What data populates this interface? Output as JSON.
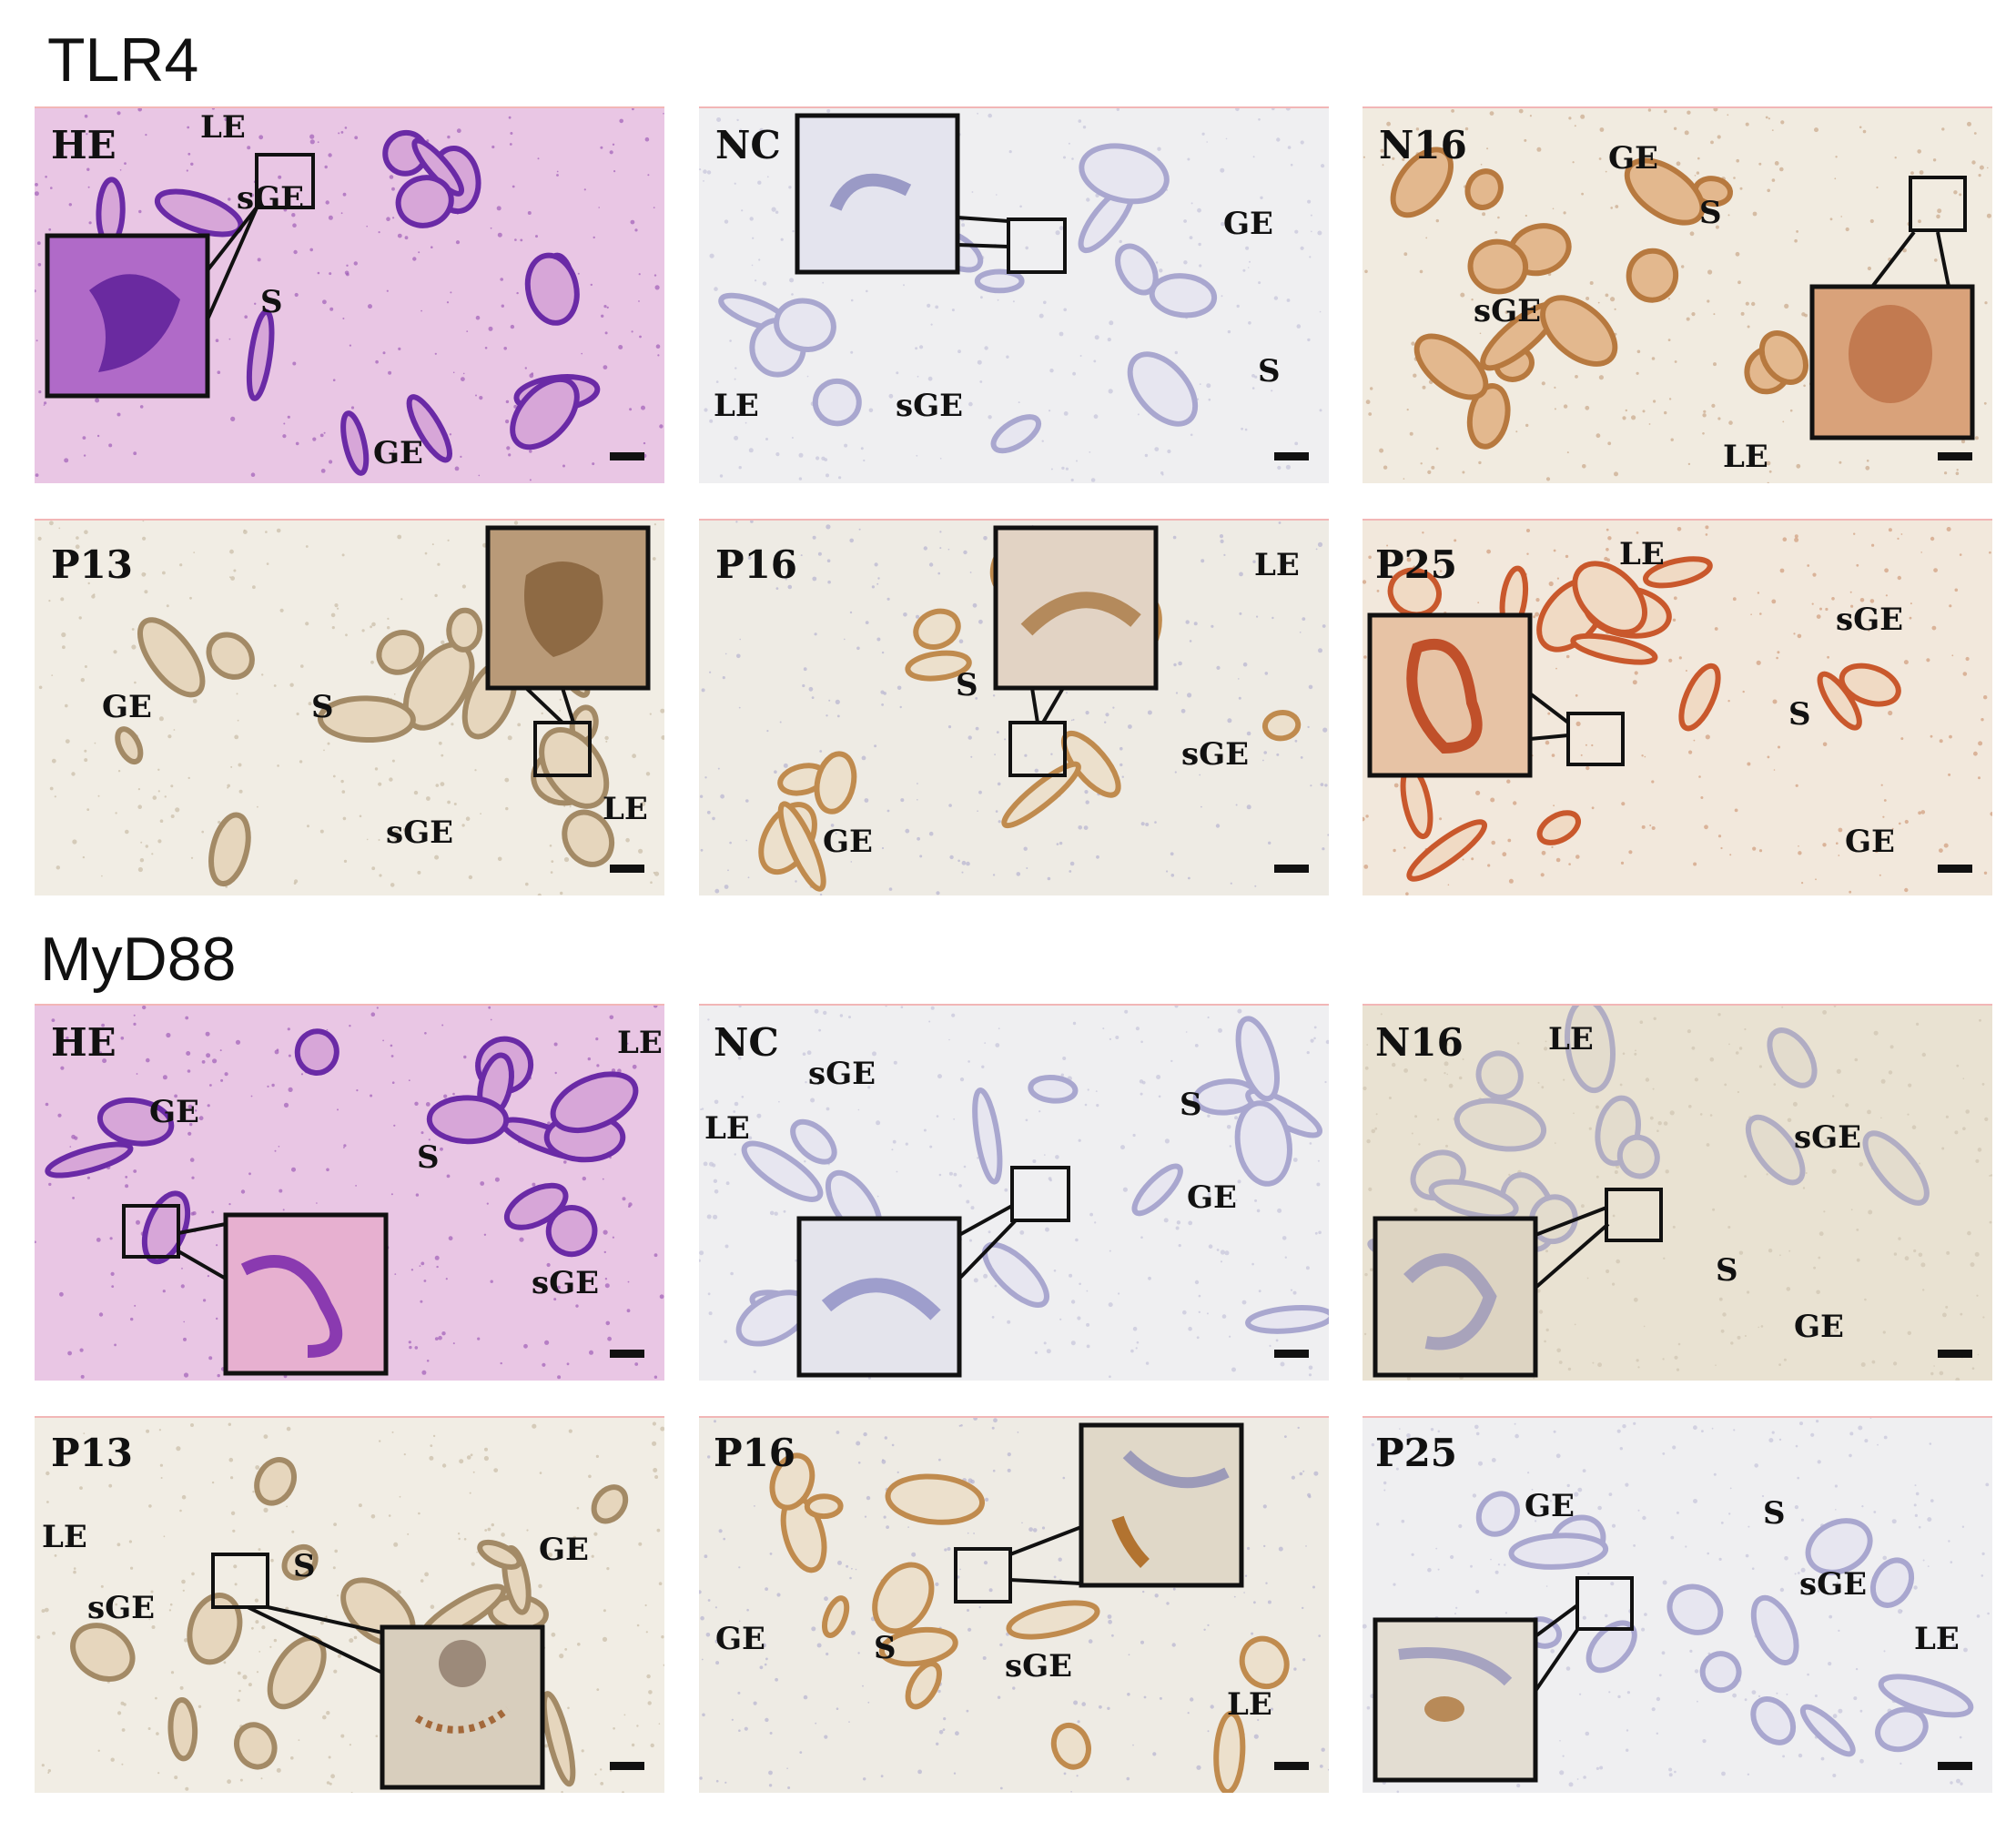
{
  "sections": [
    {
      "title": "TLR4"
    },
    {
      "title": "MyD88"
    }
  ],
  "panels": [
    {
      "name": "HE",
      "style": "he",
      "labels": [
        "LE",
        "sGE",
        "S",
        "GE"
      ]
    },
    {
      "name": "NC",
      "style": "nc",
      "labels": [
        "GE",
        "S",
        "LE",
        "sGE"
      ]
    },
    {
      "name": "N16",
      "style": "brown",
      "labels": [
        "GE",
        "S",
        "sGE",
        "LE"
      ]
    },
    {
      "name": "P13",
      "style": "lightbrown",
      "labels": [
        "GE",
        "S",
        "LE",
        "sGE"
      ]
    },
    {
      "name": "P16",
      "style": "mixed",
      "labels": [
        "LE",
        "S",
        "sGE",
        "GE"
      ]
    },
    {
      "name": "P25",
      "style": "orange",
      "labels": [
        "LE",
        "sGE",
        "S",
        "GE"
      ]
    },
    {
      "name": "HE",
      "style": "he",
      "labels": [
        "LE",
        "GE",
        "S",
        "sGE"
      ]
    },
    {
      "name": "NC",
      "style": "nc",
      "labels": [
        "sGE",
        "LE",
        "S",
        "GE"
      ]
    },
    {
      "name": "N16",
      "style": "beige",
      "labels": [
        "LE",
        "sGE",
        "S",
        "GE"
      ]
    },
    {
      "name": "P13",
      "style": "lightbrown",
      "labels": [
        "LE",
        "S",
        "GE",
        "sGE"
      ]
    },
    {
      "name": "P16",
      "style": "mixed",
      "labels": [
        "GE",
        "S",
        "sGE",
        "LE"
      ]
    },
    {
      "name": "P25",
      "style": "nc",
      "labels": [
        "GE",
        "S",
        "sGE",
        "LE"
      ]
    }
  ]
}
